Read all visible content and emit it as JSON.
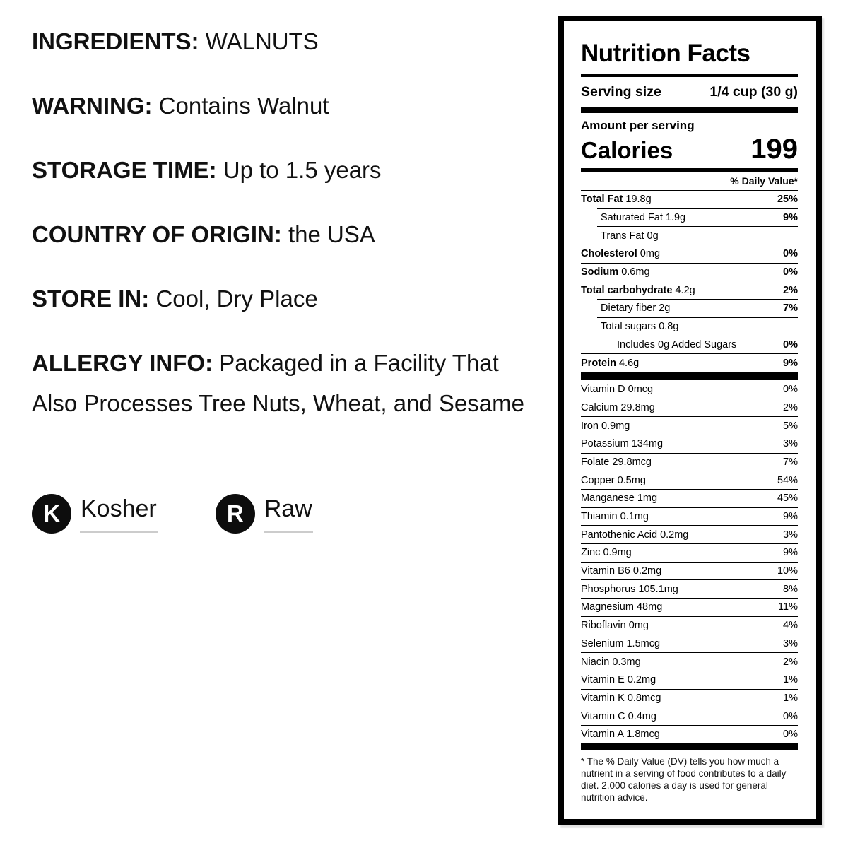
{
  "product_info": {
    "sections": [
      {
        "label": "INGREDIENTS:",
        "value": "WALNUTS"
      },
      {
        "label": "WARNING:",
        "value": "Contains Walnut"
      },
      {
        "label": "STORAGE TIME:",
        "value": "Up to 1.5 years"
      },
      {
        "label": "COUNTRY OF ORIGIN:",
        "value": "the USA"
      },
      {
        "label": "STORE IN:",
        "value": "Cool, Dry Place"
      },
      {
        "label": "ALLERGY INFO:",
        "value": "Packaged in a Facility That Also Processes Tree Nuts, Wheat, and Sesame"
      }
    ],
    "badges": [
      {
        "icon_letter": "K",
        "label": "Kosher"
      },
      {
        "icon_letter": "R",
        "label": "Raw"
      }
    ]
  },
  "nutrition_facts": {
    "title": "Nutrition Facts",
    "serving_size_label": "Serving size",
    "serving_size_value": "1/4 cup (30 g)",
    "amount_per_serving": "Amount per serving",
    "calories_label": "Calories",
    "calories_value": "199",
    "daily_value_header": "% Daily Value*",
    "main_rows": [
      {
        "name": "Total Fat",
        "amount": "19.8g",
        "dv": "25%",
        "bold": true,
        "indent": 0
      },
      {
        "name": "Saturated Fat",
        "amount": "1.9g",
        "dv": "9%",
        "bold": false,
        "indent": 1
      },
      {
        "name": "Trans Fat",
        "amount": "0g",
        "dv": "",
        "bold": false,
        "indent": 1
      },
      {
        "name": "Cholesterol",
        "amount": "0mg",
        "dv": "0%",
        "bold": true,
        "indent": 0
      },
      {
        "name": "Sodium",
        "amount": "0.6mg",
        "dv": "0%",
        "bold": true,
        "indent": 0
      },
      {
        "name": "Total carbohydrate",
        "amount": "4.2g",
        "dv": "2%",
        "bold": true,
        "indent": 0
      },
      {
        "name": "Dietary fiber",
        "amount": "2g",
        "dv": "7%",
        "bold": false,
        "indent": 1
      },
      {
        "name": "Total sugars",
        "amount": "0.8g",
        "dv": "",
        "bold": false,
        "indent": 1
      },
      {
        "name": "Includes 0g Added Sugars",
        "amount": "",
        "dv": "0%",
        "bold": false,
        "indent": 2
      },
      {
        "name": "Protein",
        "amount": "4.6g",
        "dv": "9%",
        "bold": true,
        "indent": 0
      }
    ],
    "micro_rows": [
      {
        "name": "Vitamin D",
        "amount": "0mcg",
        "dv": "0%"
      },
      {
        "name": "Calcium",
        "amount": "29.8mg",
        "dv": "2%"
      },
      {
        "name": "Iron",
        "amount": "0.9mg",
        "dv": "5%"
      },
      {
        "name": "Potassium",
        "amount": "134mg",
        "dv": "3%"
      },
      {
        "name": "Folate",
        "amount": "29.8mcg",
        "dv": "7%"
      },
      {
        "name": "Copper",
        "amount": "0.5mg",
        "dv": "54%"
      },
      {
        "name": "Manganese",
        "amount": "1mg",
        "dv": "45%"
      },
      {
        "name": "Thiamin",
        "amount": "0.1mg",
        "dv": "9%"
      },
      {
        "name": "Pantothenic Acid",
        "amount": "0.2mg",
        "dv": "3%"
      },
      {
        "name": "Zinc",
        "amount": "0.9mg",
        "dv": "9%"
      },
      {
        "name": "Vitamin B6",
        "amount": "0.2mg",
        "dv": "10%"
      },
      {
        "name": "Phosphorus",
        "amount": "105.1mg",
        "dv": "8%"
      },
      {
        "name": "Magnesium",
        "amount": "48mg",
        "dv": "11%"
      },
      {
        "name": "Riboflavin",
        "amount": "0mg",
        "dv": "4%"
      },
      {
        "name": "Selenium",
        "amount": "1.5mcg",
        "dv": "3%"
      },
      {
        "name": "Niacin",
        "amount": "0.3mg",
        "dv": "2%"
      },
      {
        "name": "Vitamin E",
        "amount": "0.2mg",
        "dv": "1%"
      },
      {
        "name": "Vitamin K",
        "amount": "0.8mcg",
        "dv": "1%"
      },
      {
        "name": "Vitamin C",
        "amount": "0.4mg",
        "dv": "0%"
      },
      {
        "name": "Vitamin A",
        "amount": "1.8mcg",
        "dv": "0%"
      }
    ],
    "footnote": "* The % Daily Value (DV) tells you how much a nutrient in a serving of food contributes to a daily diet. 2,000 calories a day is used for general nutrition advice."
  },
  "colors": {
    "text": "#111111",
    "label_border": "#000000",
    "badge_background": "#0d0d0d",
    "badge_letter": "#ffffff",
    "badge_underline": "#cccccc"
  }
}
